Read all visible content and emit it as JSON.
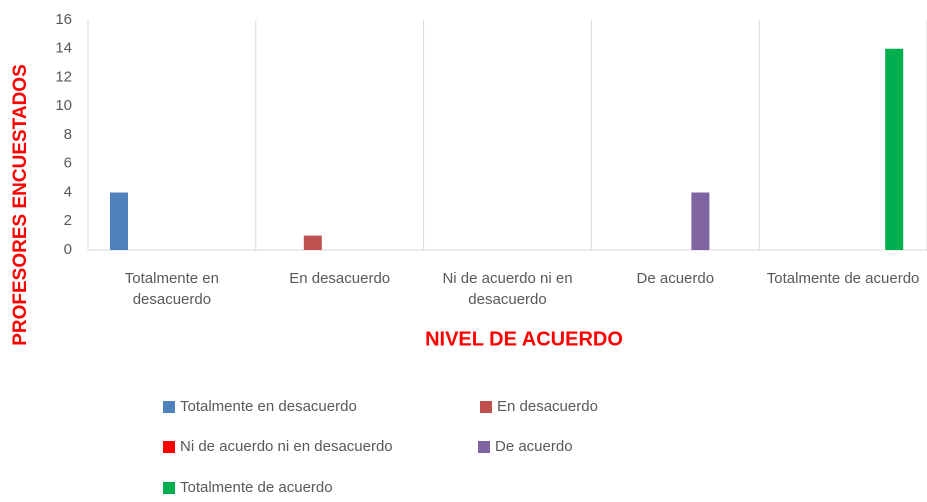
{
  "chart_data": {
    "type": "bar",
    "categories": [
      "Totalmente en desacuerdo",
      "En desacuerdo",
      "Ni de acuerdo ni en desacuerdo",
      "De acuerdo",
      "Totalmente de acuerdo"
    ],
    "series": [
      {
        "name": "Totalmente en desacuerdo",
        "color": "#4f81bd",
        "values": [
          4,
          null,
          null,
          null,
          null
        ]
      },
      {
        "name": "En desacuerdo",
        "color": "#c0504d",
        "values": [
          null,
          1,
          null,
          null,
          null
        ]
      },
      {
        "name": "Ni de acuerdo ni en desacuerdo",
        "color": "#ff0000",
        "values": [
          null,
          null,
          0,
          null,
          null
        ]
      },
      {
        "name": "De acuerdo",
        "color": "#8064a2",
        "values": [
          null,
          null,
          null,
          4,
          null
        ]
      },
      {
        "name": "Totalmente de acuerdo",
        "color": "#00b050",
        "values": [
          null,
          null,
          null,
          null,
          14
        ]
      }
    ],
    "xlabel": "NIVEL DE ACUERDO",
    "ylabel": "PROFESORES ENCUESTADOS",
    "ylim": [
      0,
      16
    ],
    "yticks": [
      0,
      2,
      4,
      6,
      8,
      10,
      12,
      14,
      16
    ],
    "grid": false,
    "legend": "bottom"
  }
}
